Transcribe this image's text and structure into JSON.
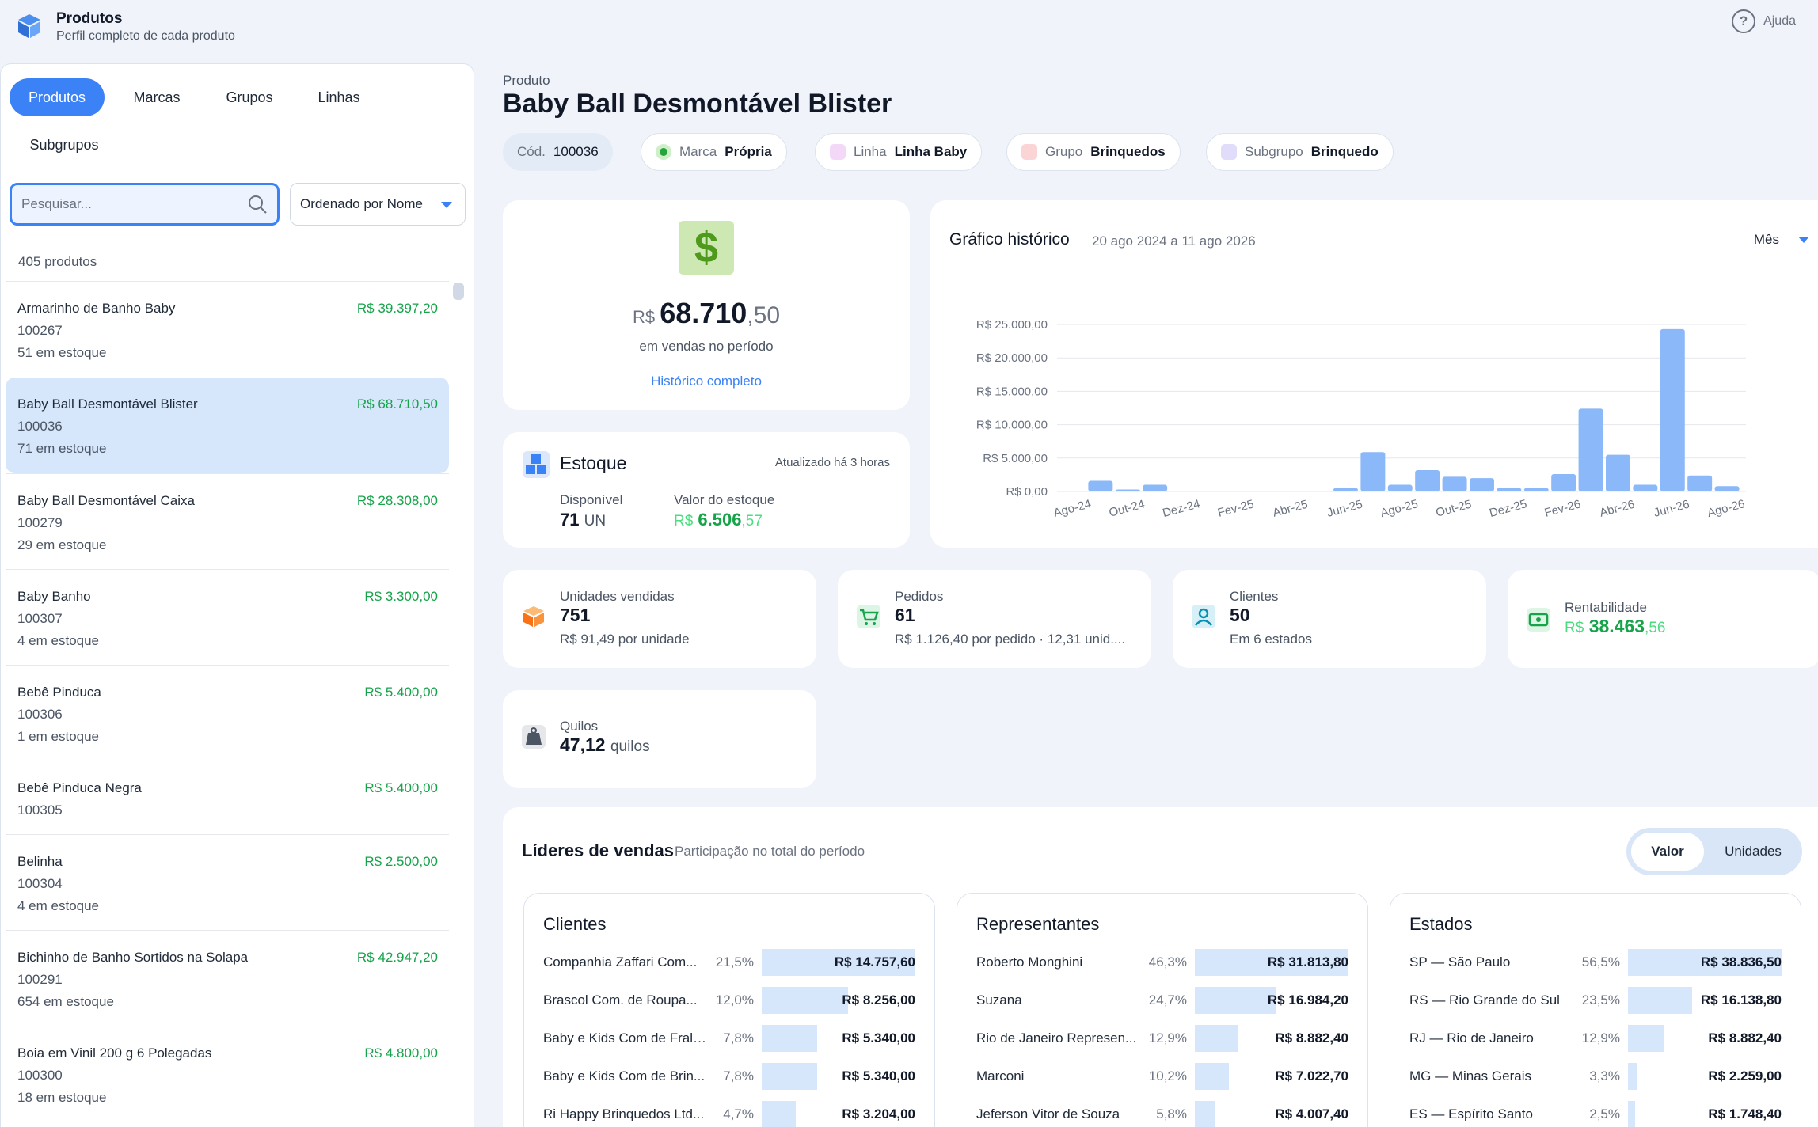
{
  "header": {
    "title": "Produtos",
    "subtitle": "Perfil completo de cada produto",
    "help": "Ajuda"
  },
  "tabs": [
    "Produtos",
    "Marcas",
    "Grupos",
    "Linhas",
    "Subgrupos"
  ],
  "search": {
    "placeholder": "Pesquisar..."
  },
  "sort": {
    "label": "Ordenado por Nome"
  },
  "count": "405 produtos",
  "products": [
    {
      "name": "Armarinho de Banho Baby",
      "code": "100267",
      "stock": "51 em estoque",
      "price": "R$ 39.397,20"
    },
    {
      "name": "Baby Ball Desmontável Blister",
      "code": "100036",
      "stock": "71 em estoque",
      "price": "R$ 68.710,50"
    },
    {
      "name": "Baby Ball Desmontável Caixa",
      "code": "100279",
      "stock": "29 em estoque",
      "price": "R$ 28.308,00"
    },
    {
      "name": "Baby Banho",
      "code": "100307",
      "stock": "4 em estoque",
      "price": "R$ 3.300,00"
    },
    {
      "name": "Bebê Pinduca",
      "code": "100306",
      "stock": "1 em estoque",
      "price": "R$ 5.400,00"
    },
    {
      "name": "Bebê Pinduca Negra",
      "code": "100305",
      "stock": "",
      "price": "R$ 5.400,00"
    },
    {
      "name": "Belinha",
      "code": "100304",
      "stock": "4 em estoque",
      "price": "R$ 2.500,00"
    },
    {
      "name": "Bichinho de Banho Sortidos na Solapa",
      "code": "100291",
      "stock": "654 em estoque",
      "price": "R$ 42.947,20"
    },
    {
      "name": "Boia em Vinil 200 g 6 Polegadas",
      "code": "100300",
      "stock": "18 em estoque",
      "price": "R$ 4.800,00"
    }
  ],
  "product": {
    "label": "Produto",
    "title": "Baby Ball Desmontável Blister",
    "code_k": "Cód.",
    "code_v": "100036",
    "brand_k": "Marca",
    "brand_v": "Própria",
    "line_k": "Linha",
    "line_v": "Linha Baby",
    "group_k": "Grupo",
    "group_v": "Brinquedos",
    "subgroup_k": "Subgrupo",
    "subgroup_v": "Brinquedo"
  },
  "sales": {
    "currency": "R$",
    "int": "68.710",
    "cents": ",50",
    "sub": "em vendas no período",
    "link": "Histórico completo"
  },
  "stock": {
    "title": "Estoque",
    "updated": "Atualizado há 3 horas",
    "avail_label": "Disponível",
    "avail_value": "71",
    "avail_unit": "UN",
    "value_label": "Valor do estoque",
    "value_currency": "R$",
    "value_int": "6.506",
    "value_cents": ",57"
  },
  "chart_title": "Gráfico histórico",
  "chart_range": "20 ago 2024 a 11 ago 2026",
  "chart_period": "Mês",
  "chart_data": {
    "type": "bar",
    "categories": [
      "Ago-24",
      "Set-24",
      "Out-24",
      "Nov-24",
      "Dez-24",
      "Jan-25",
      "Fev-25",
      "Mar-25",
      "Abr-25",
      "Mai-25",
      "Jun-25",
      "Jul-25",
      "Ago-25",
      "Set-25",
      "Out-25",
      "Nov-25",
      "Dez-25",
      "Jan-26",
      "Fev-26",
      "Mar-26",
      "Abr-26",
      "Mai-26",
      "Jun-26",
      "Jul-26",
      "Ago-26"
    ],
    "tick_labels": [
      "Ago-24",
      "Out-24",
      "Dez-24",
      "Fev-25",
      "Abr-25",
      "Jun-25",
      "Ago-25",
      "Out-25",
      "Dez-25",
      "Fev-26",
      "Abr-26",
      "Jun-26",
      "Ago-26"
    ],
    "values": [
      0,
      1600,
      300,
      1000,
      0,
      0,
      0,
      0,
      0,
      0,
      500,
      5900,
      1000,
      3200,
      2200,
      2000,
      500,
      500,
      2600,
      12400,
      5500,
      1000,
      24300,
      2400,
      800
    ],
    "y_ticks": [
      "R$ 0,00",
      "R$ 5.000,00",
      "R$ 10.000,00",
      "R$ 15.000,00",
      "R$ 20.000,00",
      "R$ 25.000,00"
    ],
    "ylim": [
      0,
      25000
    ],
    "grid": true,
    "color": "#8ab8f8"
  },
  "kpis": [
    {
      "label": "Unidades vendidas",
      "value": "751",
      "sub": "R$ 91,49 por unidade"
    },
    {
      "label": "Pedidos",
      "value": "61",
      "sub": "R$ 1.126,40 por pedido · 12,31 unid...."
    },
    {
      "label": "Clientes",
      "value": "50",
      "sub": "Em 6 estados"
    },
    {
      "label": "Rentabilidade",
      "currency": "R$",
      "int": "38.463",
      "cents": ",56"
    },
    {
      "label": "Quilos",
      "value": "47,12",
      "unit": "quilos"
    }
  ],
  "leaders": {
    "title": "Líderes de vendas",
    "subtitle": "Participação no total do período",
    "seg_on": "Valor",
    "seg_off": "Unidades",
    "groups": [
      {
        "title": "Clientes",
        "rows": [
          {
            "name": "Companhia Zaffari Com...",
            "pct": "21,5%",
            "share": 1.0,
            "value": "R$ 14.757,60"
          },
          {
            "name": "Brascol Com. de Roupa...",
            "pct": "12,0%",
            "share": 0.56,
            "value": "R$ 8.256,00"
          },
          {
            "name": "Baby e Kids Com de Frald...",
            "pct": "7,8%",
            "share": 0.36,
            "value": "R$ 5.340,00"
          },
          {
            "name": "Baby e Kids Com de Brin...",
            "pct": "7,8%",
            "share": 0.36,
            "value": "R$ 5.340,00"
          },
          {
            "name": "Ri Happy Brinquedos Ltd...",
            "pct": "4,7%",
            "share": 0.22,
            "value": "R$ 3.204,00"
          }
        ]
      },
      {
        "title": "Representantes",
        "rows": [
          {
            "name": "Roberto Monghini",
            "pct": "46,3%",
            "share": 1.0,
            "value": "R$ 31.813,80"
          },
          {
            "name": "Suzana",
            "pct": "24,7%",
            "share": 0.53,
            "value": "R$ 16.984,20"
          },
          {
            "name": "Rio de Janeiro Represen...",
            "pct": "12,9%",
            "share": 0.28,
            "value": "R$ 8.882,40"
          },
          {
            "name": "Marconi",
            "pct": "10,2%",
            "share": 0.22,
            "value": "R$ 7.022,70"
          },
          {
            "name": "Jeferson Vitor de Souza",
            "pct": "5,8%",
            "share": 0.13,
            "value": "R$ 4.007,40"
          }
        ]
      },
      {
        "title": "Estados",
        "rows": [
          {
            "name": "SP — São Paulo",
            "pct": "56,5%",
            "share": 1.0,
            "value": "R$ 38.836,50"
          },
          {
            "name": "RS — Rio Grande do Sul",
            "pct": "23,5%",
            "share": 0.42,
            "value": "R$ 16.138,80"
          },
          {
            "name": "RJ — Rio de Janeiro",
            "pct": "12,9%",
            "share": 0.23,
            "value": "R$ 8.882,40"
          },
          {
            "name": "MG — Minas Gerais",
            "pct": "3,3%",
            "share": 0.06,
            "value": "R$ 2.259,00"
          },
          {
            "name": "ES — Espírito Santo",
            "pct": "2,5%",
            "share": 0.045,
            "value": "R$ 1.748,40"
          }
        ]
      }
    ]
  }
}
